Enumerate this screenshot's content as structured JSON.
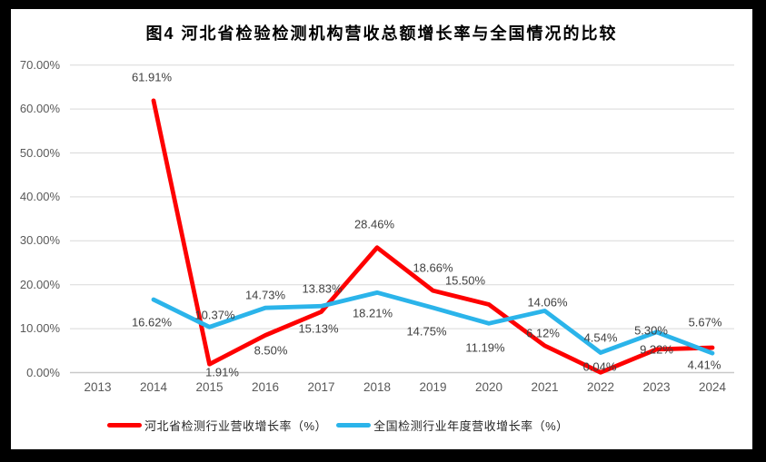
{
  "page": {
    "title": "图4 河北省检验检测机构营收总额增长率与全国情况的比较"
  },
  "chart_data": {
    "type": "line",
    "title": "图4 河北省检验检测机构营收总额增长率与全国情况的比较",
    "categories": [
      "2013",
      "2014",
      "2015",
      "2016",
      "2017",
      "2018",
      "2019",
      "2020",
      "2021",
      "2022",
      "2023",
      "2024"
    ],
    "y_ticks": [
      "0.00%",
      "10.00%",
      "20.00%",
      "30.00%",
      "40.00%",
      "50.00%",
      "60.00%",
      "70.00%"
    ],
    "ylim": [
      0,
      70
    ],
    "grid": true,
    "legend_position": "bottom",
    "series": [
      {
        "name": "河北省检测行业营收增长率（%）",
        "color": "#FE0000",
        "start_category": "2014",
        "values": [
          61.91,
          1.91,
          8.5,
          13.83,
          28.46,
          18.66,
          15.5,
          6.12,
          0.04,
          5.3,
          5.67
        ],
        "labels": [
          "61.91%",
          "1.91%",
          "8.50%",
          "13.83%",
          "28.46%",
          "18.66%",
          "15.50%",
          "6.12%",
          "0.04%",
          "5.30%",
          "5.67%"
        ]
      },
      {
        "name": "全国检测行业年度营收增长率（%）",
        "color": "#2BB4EA",
        "start_category": "2014",
        "values": [
          16.62,
          10.37,
          14.73,
          15.13,
          18.21,
          14.75,
          11.19,
          14.06,
          4.54,
          9.22,
          4.41
        ],
        "labels": [
          "16.62%",
          "10.37%",
          "14.73%",
          "15.13%",
          "18.21%",
          "14.75%",
          "11.19%",
          "14.06%",
          "4.54%",
          "9.22%",
          "4.41%"
        ]
      }
    ]
  }
}
